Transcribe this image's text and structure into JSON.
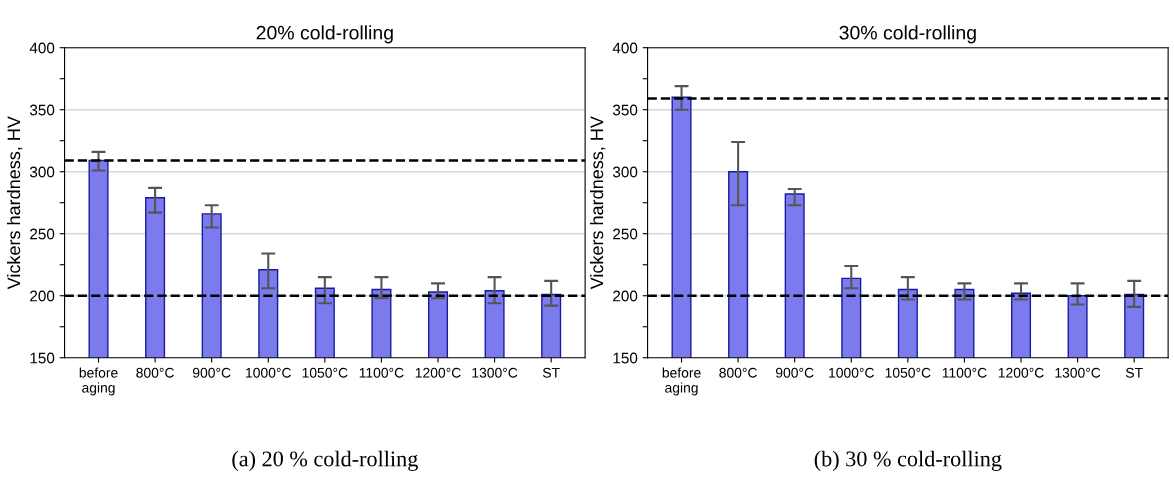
{
  "chart_data": [
    {
      "type": "bar",
      "title": "20% cold-rolling",
      "ylabel": "Vickers hardness, HV",
      "categories": [
        "before\naging",
        "800°C",
        "900°C",
        "1000°C",
        "1050°C",
        "1100°C",
        "1200°C",
        "1300°C",
        "ST"
      ],
      "series": [
        {
          "color": "#7b7bee",
          "values": [
            309,
            279,
            266,
            221,
            206,
            205,
            203,
            204,
            201
          ],
          "errors": [
            [
              301,
              316
            ],
            [
              267,
              287
            ],
            [
              255,
              273
            ],
            [
              206,
              234
            ],
            [
              194,
              215
            ],
            [
              198,
              215
            ],
            [
              198,
              210
            ],
            [
              194,
              215
            ],
            [
              192,
              212
            ]
          ]
        }
      ],
      "ylim": [
        150,
        400
      ],
      "yticks": [
        150,
        {
          "value": 175,
          "label": null
        },
        200,
        {
          "value": 225,
          "label": null
        },
        250,
        {
          "value": 275,
          "label": null
        },
        300,
        {
          "value": 325,
          "label": null
        },
        350,
        {
          "value": 375,
          "label": null
        },
        400
      ],
      "grid": "y",
      "ref_lines": [
        {
          "axis": "y",
          "value": 309,
          "label": null,
          "color": "#000000",
          "line_style": "dashed"
        },
        {
          "axis": "y",
          "value": 200,
          "label": null,
          "color": "#000000",
          "line_style": "dashed"
        }
      ],
      "annotations": [
        "(a) 20 % cold-rolling"
      ]
    },
    {
      "type": "bar",
      "title": "30% cold-rolling",
      "ylabel": "Vickers hardness, HV",
      "categories": [
        "before\naging",
        "800°C",
        "900°C",
        "1000°C",
        "1050°C",
        "1100°C",
        "1200°C",
        "1300°C",
        "ST"
      ],
      "series": [
        {
          "color": "#7b7bee",
          "values": [
            360,
            300,
            282,
            214,
            205,
            205,
            202,
            200,
            201
          ],
          "errors": [
            [
              350,
              369
            ],
            [
              273,
              324
            ],
            [
              273,
              286
            ],
            [
              206,
              224
            ],
            [
              197,
              215
            ],
            [
              197,
              210
            ],
            [
              197,
              210
            ],
            [
              193,
              210
            ],
            [
              191,
              212
            ]
          ]
        }
      ],
      "ylim": [
        150,
        400
      ],
      "yticks": [
        150,
        {
          "value": 175,
          "label": null
        },
        200,
        {
          "value": 225,
          "label": null
        },
        250,
        {
          "value": 275,
          "label": null
        },
        300,
        {
          "value": 325,
          "label": null
        },
        350,
        {
          "value": 375,
          "label": null
        },
        400
      ],
      "grid": "y",
      "ref_lines": [
        {
          "axis": "y",
          "value": 359,
          "label": null,
          "color": "#000000",
          "line_style": "dashed"
        },
        {
          "axis": "y",
          "value": 200,
          "label": null,
          "color": "#000000",
          "line_style": "dashed"
        }
      ],
      "annotations": [
        "(b) 30 % cold-rolling"
      ]
    }
  ]
}
